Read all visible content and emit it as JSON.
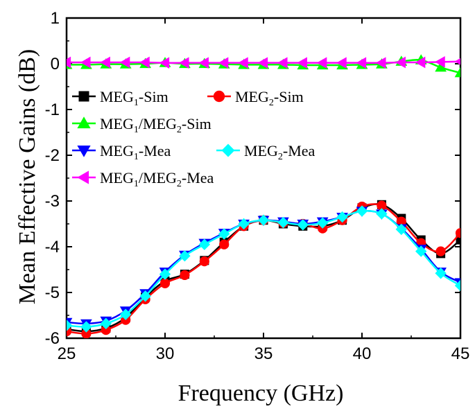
{
  "chart_data": {
    "type": "line",
    "xlabel": "Frequency (GHz)",
    "ylabel": "Mean Effective Gains (dB)",
    "xlim": [
      25,
      45
    ],
    "ylim": [
      -6,
      1
    ],
    "xticks": [
      25,
      30,
      35,
      40,
      45
    ],
    "yticks": [
      -6,
      -5,
      -4,
      -3,
      -2,
      -1,
      0,
      1
    ],
    "grid": false,
    "legend_position": "upper-left",
    "series": [
      {
        "name": "MEG1-Sim",
        "base": "MEG",
        "sub": "1",
        "suffix": "-Sim",
        "color": "#000000",
        "marker": "square",
        "x": [
          25,
          26,
          27,
          28,
          29,
          30,
          31,
          32,
          33,
          34,
          35,
          36,
          37,
          38,
          39,
          40,
          41,
          42,
          43,
          44,
          45
        ],
        "values": [
          -5.8,
          -5.85,
          -5.78,
          -5.55,
          -5.1,
          -4.75,
          -4.6,
          -4.3,
          -3.9,
          -3.55,
          -3.42,
          -3.5,
          -3.55,
          -3.55,
          -3.42,
          -3.15,
          -3.08,
          -3.38,
          -3.85,
          -4.15,
          -3.85
        ]
      },
      {
        "name": "MEG2-Sim",
        "base": "MEG",
        "sub": "2",
        "suffix": "-Sim",
        "color": "#ff0000",
        "marker": "circle",
        "x": [
          25,
          26,
          27,
          28,
          29,
          30,
          31,
          32,
          33,
          34,
          35,
          36,
          37,
          38,
          39,
          40,
          41,
          42,
          43,
          44,
          45
        ],
        "values": [
          -5.85,
          -5.9,
          -5.82,
          -5.6,
          -5.15,
          -4.8,
          -4.62,
          -4.32,
          -3.95,
          -3.55,
          -3.42,
          -3.48,
          -3.5,
          -3.6,
          -3.42,
          -3.12,
          -3.1,
          -3.45,
          -3.92,
          -4.1,
          -3.7
        ]
      },
      {
        "name": "MEG1/MEG2-Sim",
        "base": "MEG",
        "sub": "1",
        "middle": "/MEG",
        "sub2": "2",
        "suffix": "-Sim",
        "color": "#00ff00",
        "marker": "triangle-up",
        "x": [
          25,
          26,
          27,
          28,
          29,
          30,
          31,
          32,
          33,
          34,
          35,
          36,
          37,
          38,
          39,
          40,
          41,
          42,
          43,
          44,
          45
        ],
        "values": [
          -0.02,
          -0.02,
          -0.01,
          -0.01,
          0,
          0.02,
          0,
          0,
          -0.01,
          -0.02,
          -0.02,
          -0.02,
          -0.03,
          -0.03,
          -0.03,
          -0.02,
          -0.01,
          0.05,
          0.08,
          -0.08,
          -0.2
        ]
      },
      {
        "name": "MEG1-Mea",
        "base": "MEG",
        "sub": "1",
        "suffix": "-Mea",
        "color": "#0000ff",
        "marker": "triangle-down",
        "x": [
          25,
          26,
          27,
          28,
          29,
          30,
          31,
          32,
          33,
          34,
          35,
          36,
          37,
          38,
          39,
          40,
          41,
          42,
          43,
          44,
          45
        ],
        "values": [
          -5.65,
          -5.68,
          -5.62,
          -5.4,
          -5.02,
          -4.55,
          -4.18,
          -3.92,
          -3.7,
          -3.5,
          -3.42,
          -3.45,
          -3.5,
          -3.45,
          -3.35,
          -3.22,
          -3.28,
          -3.6,
          -4.05,
          -4.55,
          -4.78
        ]
      },
      {
        "name": "MEG2-Mea",
        "base": "MEG",
        "sub": "2",
        "suffix": "-Mea",
        "color": "#00ffff",
        "marker": "diamond",
        "x": [
          25,
          26,
          27,
          28,
          29,
          30,
          31,
          32,
          33,
          34,
          35,
          36,
          37,
          38,
          39,
          40,
          41,
          42,
          43,
          44,
          45
        ],
        "values": [
          -5.72,
          -5.75,
          -5.68,
          -5.48,
          -5.08,
          -4.6,
          -4.2,
          -3.95,
          -3.72,
          -3.5,
          -3.42,
          -3.47,
          -3.52,
          -3.48,
          -3.35,
          -3.22,
          -3.28,
          -3.62,
          -4.1,
          -4.58,
          -4.85
        ]
      },
      {
        "name": "MEG1/MEG2-Mea",
        "base": "MEG",
        "sub": "1",
        "middle": "/MEG",
        "sub2": "2",
        "suffix": "-Mea",
        "color": "#ff00ff",
        "marker": "triangle-left",
        "x": [
          25,
          26,
          27,
          28,
          29,
          30,
          31,
          32,
          33,
          34,
          35,
          36,
          37,
          38,
          39,
          40,
          41,
          42,
          43,
          44,
          45
        ],
        "values": [
          0.03,
          0.03,
          0.03,
          0.03,
          0.03,
          0.02,
          0.02,
          0.02,
          0.02,
          0.02,
          0.02,
          0.02,
          0.02,
          0.02,
          0.02,
          0.02,
          0.02,
          0.03,
          0.03,
          0.04,
          0.05
        ]
      }
    ]
  }
}
